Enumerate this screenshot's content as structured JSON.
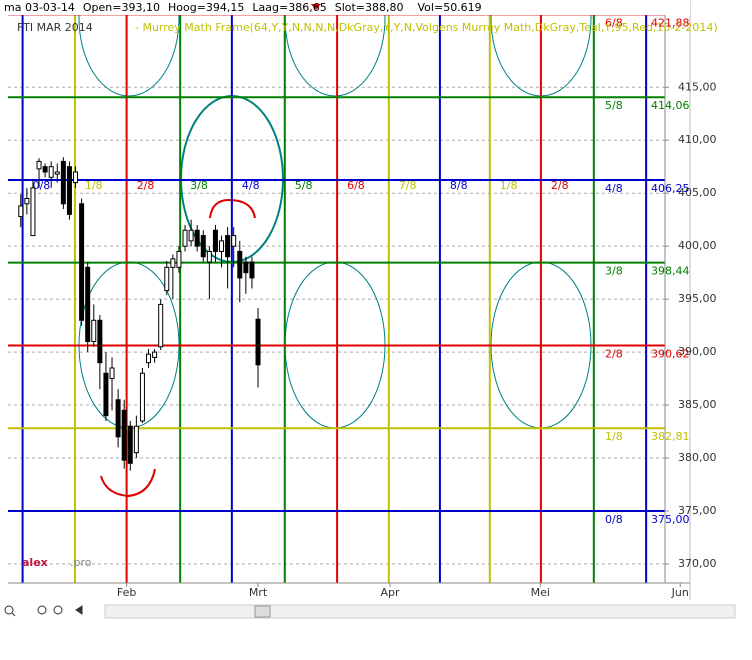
{
  "chart_data": {
    "type": "candlestick",
    "info": [
      "ma 03-03-14",
      "Open=393,10",
      "Hoog=394,15",
      "Laag=386,65",
      "Slot=388,80",
      "Vol=50.619"
    ],
    "title": "FTI MAR 2014",
    "indicator": "- Murrey Math Frame(64,Y,Y,N,N,N,N,DkGray,Y,Y,N,Volgens Murrey Math,DkGray,Teal,Y,95,Red,10-2-2014)",
    "watermark": [
      "alex",
      ".pro"
    ],
    "categories": [
      null,
      null,
      null,
      null,
      null,
      null,
      null,
      null,
      null,
      null,
      null,
      null,
      null,
      null,
      null,
      null,
      null,
      null,
      null,
      null,
      null,
      null,
      null,
      null,
      null,
      null,
      null,
      null,
      null,
      null,
      null,
      null,
      null,
      null,
      null,
      null,
      null,
      null,
      null,
      null
    ],
    "open": [
      402.8,
      404,
      401,
      407.3,
      407.5,
      406.5,
      406.8,
      408,
      407.5,
      406,
      404,
      398,
      391,
      393,
      388,
      387.5,
      385.5,
      384.5,
      383,
      380.5,
      383.5,
      389,
      389.5,
      390.5,
      395.8,
      398,
      398,
      400,
      400.5,
      401.5,
      401,
      398.5,
      401.5,
      399.5,
      401,
      400,
      399.5,
      398.5,
      398.5,
      393.1
    ],
    "high": [
      404.9,
      405.5,
      406.2,
      408.3,
      407.8,
      408,
      407.8,
      408.4,
      408,
      407.5,
      404.5,
      398.5,
      394.5,
      393.5,
      390,
      389.5,
      386.5,
      385.5,
      383.5,
      384,
      388.5,
      390.3,
      390.3,
      395,
      398.6,
      399.2,
      400,
      402,
      402.5,
      402,
      401.5,
      400,
      402,
      401,
      401.8,
      401.8,
      400.5,
      399,
      399,
      394.15
    ],
    "low": [
      401.8,
      403,
      401,
      405.5,
      406.5,
      405.5,
      406,
      403.5,
      402.5,
      405.5,
      392.5,
      390,
      390.5,
      386.5,
      383.5,
      384.5,
      381,
      379,
      378.8,
      380,
      383.3,
      388.5,
      389,
      390.2,
      395.4,
      395,
      397.5,
      399.5,
      400,
      399.5,
      398.5,
      395,
      398.5,
      398,
      396,
      398,
      394.7,
      395.5,
      396,
      386.65
    ],
    "close": [
      403.8,
      404.5,
      405.5,
      408,
      407,
      407.5,
      407,
      404,
      403,
      407,
      393,
      391,
      393,
      389,
      384,
      388.5,
      382,
      379.8,
      379.5,
      383,
      388,
      389.8,
      390,
      394.5,
      398,
      398.8,
      399.5,
      401.5,
      401.5,
      400,
      399,
      399.5,
      399.5,
      400.5,
      399,
      401,
      397,
      397.5,
      397,
      388.8
    ],
    "xlim": [
      -2.1,
      105.9
    ],
    "xticks": [
      {
        "value": 17.4,
        "label": "Feb"
      },
      {
        "value": 39,
        "label": "Mrt"
      },
      {
        "value": 60.7,
        "label": "Apr"
      },
      {
        "value": 85.4,
        "label": "Mei"
      },
      {
        "value": 108.4,
        "label": "Jun"
      }
    ],
    "ylim": [
      368.2,
      422.2
    ],
    "yticks": [
      {
        "value": 370,
        "label": "370,00"
      },
      {
        "value": 375,
        "label": "375,00"
      },
      {
        "value": 380,
        "label": "380,00"
      },
      {
        "value": 385,
        "label": "385,00"
      },
      {
        "value": 390,
        "label": "390,00"
      },
      {
        "value": 395,
        "label": "395,00"
      },
      {
        "value": 400,
        "label": "400,00"
      },
      {
        "value": 405,
        "label": "405,00"
      },
      {
        "value": 410,
        "label": "410,00"
      },
      {
        "value": 415,
        "label": "415,00"
      }
    ],
    "grid": true,
    "levels": {
      "values": [
        375,
        382.81,
        390.62,
        398.44,
        406.25,
        414.06,
        421.88
      ],
      "value_labels": [
        "375,00",
        "382,81",
        "390,62",
        "398,44",
        "406,25",
        "414,06",
        "421,88"
      ],
      "fractions": [
        "0/8",
        "1/8",
        "2/8",
        "3/8",
        "4/8",
        "5/8",
        "6/8"
      ],
      "colors": [
        "#0000cc",
        "#c0c000",
        "#e00000",
        "#008000",
        "#0000cc",
        "#008000",
        "#e00000"
      ]
    },
    "time_lines": {
      "x": [
        0.3,
        8.9,
        17.4,
        26.2,
        34.7,
        43.4,
        52,
        60.5,
        68.9,
        77.1,
        85.5,
        94.2,
        102.8
      ],
      "labels": [
        "0/8",
        "1/8",
        "2/8",
        "3/8",
        "4/8",
        "5/8",
        "6/8",
        "7/8",
        "8/8",
        "1/8",
        "2/8",
        null,
        null
      ],
      "colors": [
        "#0000cc",
        "#c0c000",
        "#e00000",
        "#008000",
        "#0000cc",
        "#008000",
        "#e00000",
        "#c0c000",
        "#0000cc",
        "#c0c000",
        "#e00000",
        "#008000",
        "#0000cc"
      ]
    }
  }
}
